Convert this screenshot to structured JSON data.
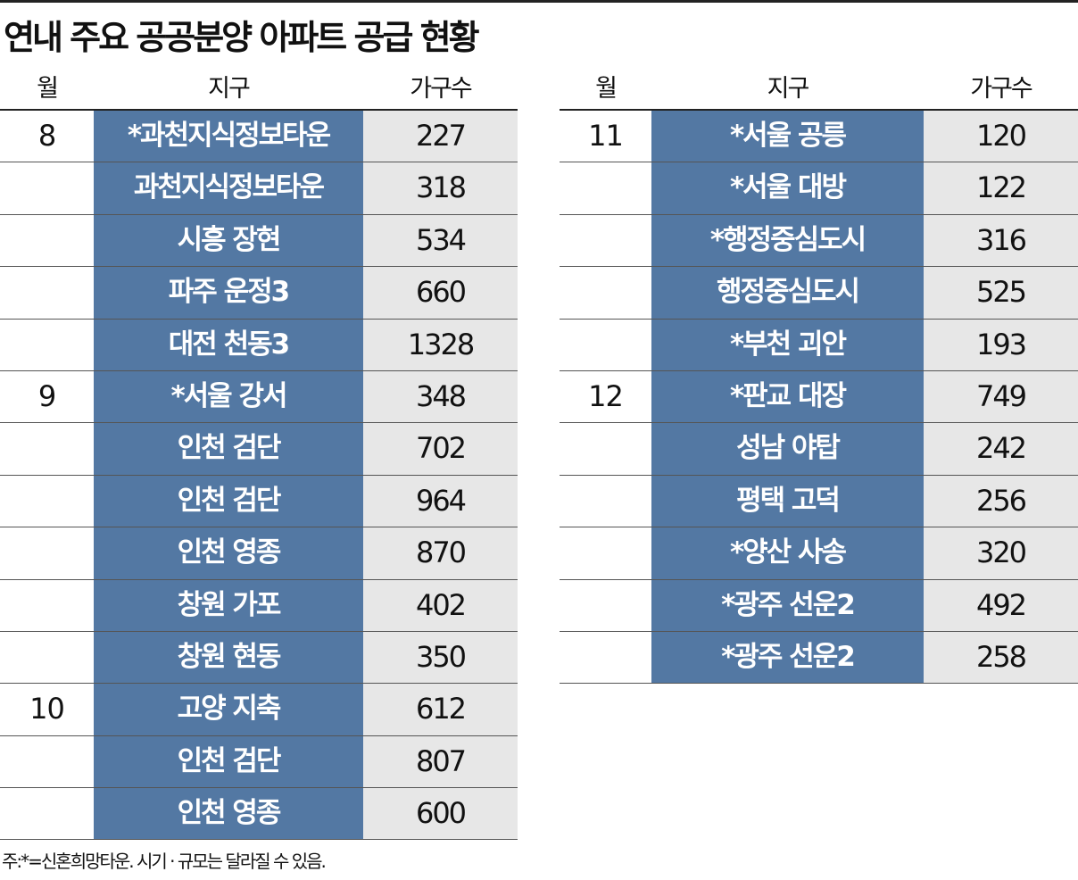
{
  "title": "연내 주요 공공분양 아파트 공급 현황",
  "headers": {
    "month": "월",
    "district": "지구",
    "units": "가구수"
  },
  "colors": {
    "district_bg": "#5378a3",
    "units_bg": "#e7e7e7"
  },
  "left_rows": [
    {
      "month": "8",
      "district": "*과천지식정보타운",
      "units": "227"
    },
    {
      "month": "",
      "district": "과천지식정보타운",
      "units": "318"
    },
    {
      "month": "",
      "district": "시흥 장현",
      "units": "534"
    },
    {
      "month": "",
      "district": "파주 운정3",
      "units": "660"
    },
    {
      "month": "",
      "district": "대전 천동3",
      "units": "1328"
    },
    {
      "month": "9",
      "district": "*서울 강서",
      "units": "348"
    },
    {
      "month": "",
      "district": "인천 검단",
      "units": "702"
    },
    {
      "month": "",
      "district": "인천 검단",
      "units": "964"
    },
    {
      "month": "",
      "district": "인천 영종",
      "units": "870"
    },
    {
      "month": "",
      "district": "창원 가포",
      "units": "402"
    },
    {
      "month": "",
      "district": "창원 현동",
      "units": "350"
    },
    {
      "month": "10",
      "district": "고양 지축",
      "units": "612"
    },
    {
      "month": "",
      "district": "인천 검단",
      "units": "807"
    },
    {
      "month": "",
      "district": "인천 영종",
      "units": "600"
    }
  ],
  "right_rows": [
    {
      "month": "11",
      "district": "*서울 공릉",
      "units": "120"
    },
    {
      "month": "",
      "district": "*서울 대방",
      "units": "122"
    },
    {
      "month": "",
      "district": "*행정중심도시",
      "units": "316"
    },
    {
      "month": "",
      "district": "행정중심도시",
      "units": "525"
    },
    {
      "month": "",
      "district": "*부천 괴안",
      "units": "193"
    },
    {
      "month": "12",
      "district": "*판교 대장",
      "units": "749"
    },
    {
      "month": "",
      "district": "성남 야탑",
      "units": "242"
    },
    {
      "month": "",
      "district": "평택 고덕",
      "units": "256"
    },
    {
      "month": "",
      "district": "*양산 사송",
      "units": "320"
    },
    {
      "month": "",
      "district": "*광주 선운2",
      "units": "492"
    },
    {
      "month": "",
      "district": "*광주 선운2",
      "units": "258"
    }
  ],
  "footnote": "주:*=신혼희망타운. 시기 · 규모는 달라질 수 있음."
}
